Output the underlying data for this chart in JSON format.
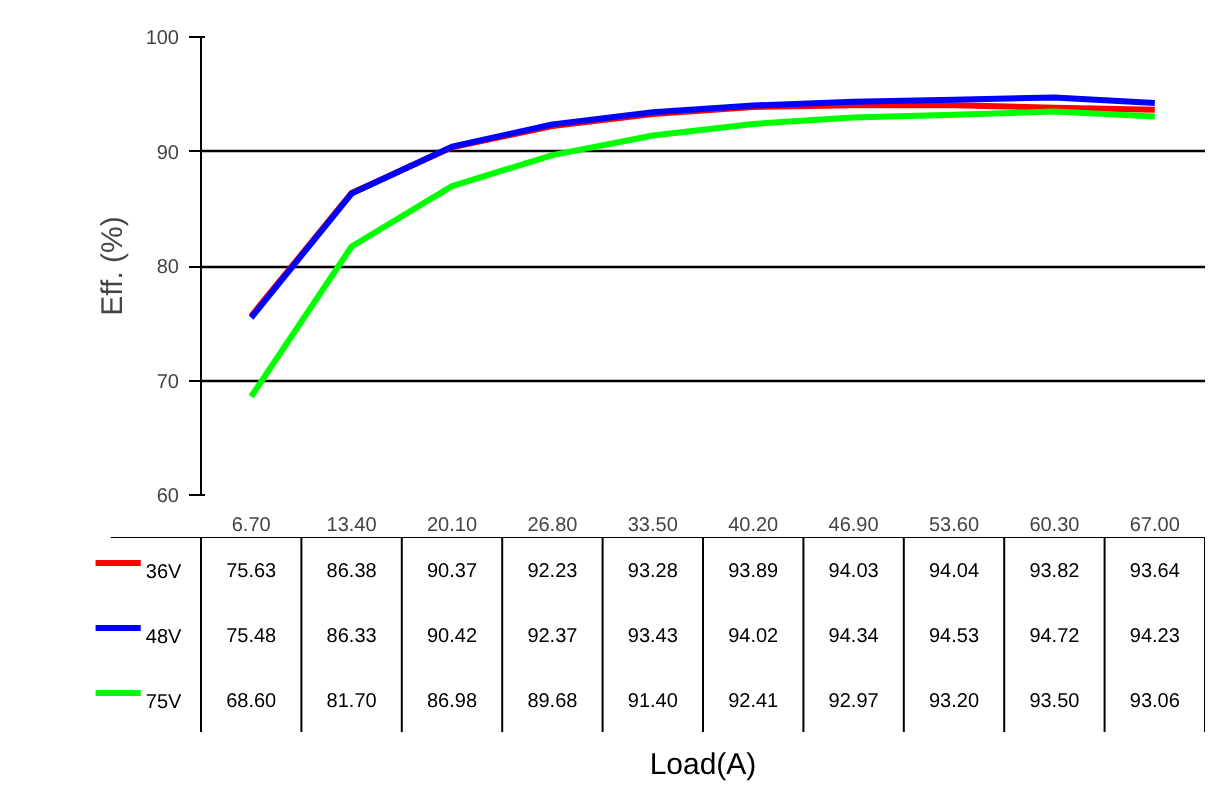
{
  "chart_data": {
    "type": "line",
    "ylabel": "Eff. (%)",
    "annotations": [
      "Load(A)"
    ],
    "categories": [
      "6.70",
      "13.40",
      "20.10",
      "26.80",
      "33.50",
      "40.20",
      "46.90",
      "53.60",
      "60.30",
      "67.00"
    ],
    "series": [
      {
        "name": "36V",
        "color": "#ff0000",
        "values": [
          75.63,
          86.38,
          90.37,
          92.23,
          93.28,
          93.89,
          94.03,
          94.04,
          93.82,
          93.64
        ],
        "value_labels": [
          "75.63",
          "86.38",
          "90.37",
          "92.23",
          "93.28",
          "93.89",
          "94.03",
          "94.04",
          "93.82",
          "93.64"
        ]
      },
      {
        "name": "48V",
        "color": "#0000ff",
        "values": [
          75.48,
          86.33,
          90.42,
          92.37,
          93.43,
          94.02,
          94.34,
          94.53,
          94.72,
          94.23
        ],
        "value_labels": [
          "75.48",
          "86.33",
          "90.42",
          "92.37",
          "93.43",
          "94.02",
          "94.34",
          "94.53",
          "94.72",
          "94.23"
        ]
      },
      {
        "name": "75V",
        "color": "#00ff00",
        "values": [
          68.6,
          81.7,
          86.98,
          89.68,
          91.4,
          92.41,
          92.97,
          93.2,
          93.5,
          93.06
        ],
        "value_labels": [
          "68.60",
          "81.70",
          "86.98",
          "89.68",
          "91.40",
          "92.41",
          "92.97",
          "93.20",
          "93.50",
          "93.06"
        ]
      }
    ],
    "ylim": [
      60,
      100
    ],
    "yticks": [
      60,
      70,
      80,
      90,
      100
    ],
    "grid": "y",
    "legend": "bottom"
  }
}
